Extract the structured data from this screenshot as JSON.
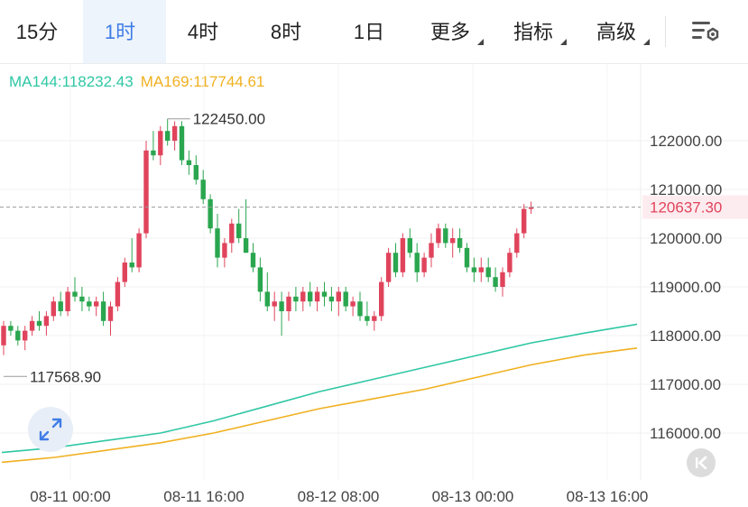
{
  "toolbar": {
    "tabs": [
      {
        "label": "15分",
        "active": false,
        "dropdown": false
      },
      {
        "label": "1时",
        "active": true,
        "dropdown": false
      },
      {
        "label": "4时",
        "active": false,
        "dropdown": false
      },
      {
        "label": "8时",
        "active": false,
        "dropdown": false
      },
      {
        "label": "1日",
        "active": false,
        "dropdown": false
      },
      {
        "label": "更多",
        "active": false,
        "dropdown": true
      },
      {
        "label": "指标",
        "active": false,
        "dropdown": true
      },
      {
        "label": "高级",
        "active": false,
        "dropdown": true
      }
    ],
    "settings_icon": "chart-settings-icon"
  },
  "legend": {
    "ma144": "MA144:118232.43",
    "ma169": "MA169:117744.61",
    "ma144_color": "#2fc7a4",
    "ma169_color": "#f0b020"
  },
  "colors": {
    "up": "#e0445c",
    "down": "#2aa64f",
    "accent": "#3f7de6"
  },
  "chart_data": {
    "type": "candlestick",
    "interval": "1时",
    "y_range": [
      115500,
      123000
    ],
    "y_ticks": [
      "122000.00",
      "121000.00",
      "120000.00",
      "119000.00",
      "118000.00",
      "117000.00",
      "116000.00"
    ],
    "x_labels": [
      "08-11 00:00",
      "08-11 16:00",
      "08-12 08:00",
      "08-13 00:00",
      "08-13 16:00"
    ],
    "high_label": "122450.00",
    "low_label": "117568.90",
    "current_price": "120637.30",
    "candles": [
      [
        117800,
        118300,
        117600,
        118200
      ],
      [
        118200,
        118300,
        118000,
        118100
      ],
      [
        118100,
        118200,
        117800,
        117900
      ],
      [
        117900,
        118200,
        117700,
        118100
      ],
      [
        118100,
        118400,
        118000,
        118300
      ],
      [
        118300,
        118500,
        118100,
        118200
      ],
      [
        118200,
        118500,
        118000,
        118400
      ],
      [
        118400,
        118800,
        118300,
        118700
      ],
      [
        118700,
        118900,
        118400,
        118500
      ],
      [
        118500,
        119000,
        118400,
        118900
      ],
      [
        118900,
        119200,
        118700,
        118800
      ],
      [
        118800,
        119000,
        118500,
        118700
      ],
      [
        118700,
        118800,
        118500,
        118600
      ],
      [
        118600,
        118800,
        118400,
        118700
      ],
      [
        118700,
        118900,
        118200,
        118300
      ],
      [
        118300,
        118700,
        118000,
        118600
      ],
      [
        118600,
        119200,
        118500,
        119100
      ],
      [
        119100,
        119600,
        119000,
        119500
      ],
      [
        119500,
        120000,
        119300,
        119400
      ],
      [
        119400,
        120200,
        119300,
        120100
      ],
      [
        120100,
        122000,
        120000,
        121800
      ],
      [
        121800,
        122200,
        121600,
        121700
      ],
      [
        121700,
        122300,
        121500,
        122200
      ],
      [
        122200,
        122450,
        121900,
        122000
      ],
      [
        122000,
        122400,
        121800,
        122300
      ],
      [
        122300,
        122400,
        121500,
        121600
      ],
      [
        121600,
        121800,
        121300,
        121500
      ],
      [
        121500,
        121700,
        121100,
        121200
      ],
      [
        121200,
        121400,
        120700,
        120800
      ],
      [
        120800,
        120900,
        120100,
        120200
      ],
      [
        120200,
        120500,
        119400,
        119600
      ],
      [
        119600,
        120000,
        119400,
        119900
      ],
      [
        119900,
        120400,
        119700,
        120300
      ],
      [
        120300,
        120600,
        119900,
        120000
      ],
      [
        120000,
        120800,
        119700,
        119700
      ],
      [
        119700,
        119900,
        119300,
        119400
      ],
      [
        119400,
        119600,
        118700,
        118900
      ],
      [
        118900,
        119300,
        118500,
        118600
      ],
      [
        118600,
        118900,
        118300,
        118700
      ],
      [
        118700,
        118900,
        118000,
        118500
      ],
      [
        118500,
        118900,
        118300,
        118800
      ],
      [
        118800,
        119000,
        118500,
        118700
      ],
      [
        118700,
        119000,
        118500,
        118900
      ],
      [
        118900,
        119100,
        118600,
        118700
      ],
      [
        118700,
        119000,
        118500,
        118900
      ],
      [
        118900,
        119100,
        118600,
        118800
      ],
      [
        118800,
        119000,
        118500,
        118700
      ],
      [
        118700,
        119000,
        118400,
        118900
      ],
      [
        118900,
        119000,
        118500,
        118600
      ],
      [
        118600,
        118800,
        118400,
        118700
      ],
      [
        118700,
        118900,
        118300,
        118400
      ],
      [
        118400,
        118700,
        118200,
        118300
      ],
      [
        118300,
        118500,
        118100,
        118400
      ],
      [
        118400,
        119200,
        118300,
        119100
      ],
      [
        119100,
        119800,
        119000,
        119700
      ],
      [
        119700,
        119900,
        119200,
        119300
      ],
      [
        119300,
        120100,
        119200,
        120000
      ],
      [
        120000,
        120200,
        119600,
        119700
      ],
      [
        119700,
        119900,
        119100,
        119300
      ],
      [
        119300,
        119700,
        119200,
        119600
      ],
      [
        119600,
        120100,
        119400,
        119900
      ],
      [
        119900,
        120300,
        119800,
        120200
      ],
      [
        120200,
        120300,
        119800,
        119900
      ],
      [
        119900,
        120200,
        119600,
        120000
      ],
      [
        120000,
        120200,
        119700,
        119800
      ],
      [
        119800,
        119900,
        119300,
        119400
      ],
      [
        119400,
        119600,
        119100,
        119300
      ],
      [
        119300,
        119600,
        119100,
        119400
      ],
      [
        119400,
        119600,
        119100,
        119200
      ],
      [
        119200,
        119400,
        118900,
        119000
      ],
      [
        119000,
        119400,
        118800,
        119300
      ],
      [
        119300,
        119800,
        119200,
        119700
      ],
      [
        119700,
        120200,
        119600,
        120100
      ],
      [
        120100,
        120700,
        120000,
        120600
      ],
      [
        120600,
        120750,
        120500,
        120637.3
      ]
    ],
    "ma144": [
      115600,
      115700,
      115850,
      116000,
      116250,
      116550,
      116850,
      117100,
      117350,
      117600,
      117850,
      118050,
      118232.43
    ],
    "ma169": [
      115400,
      115500,
      115650,
      115800,
      116000,
      116250,
      116500,
      116700,
      116900,
      117150,
      117400,
      117600,
      117744.61
    ]
  }
}
